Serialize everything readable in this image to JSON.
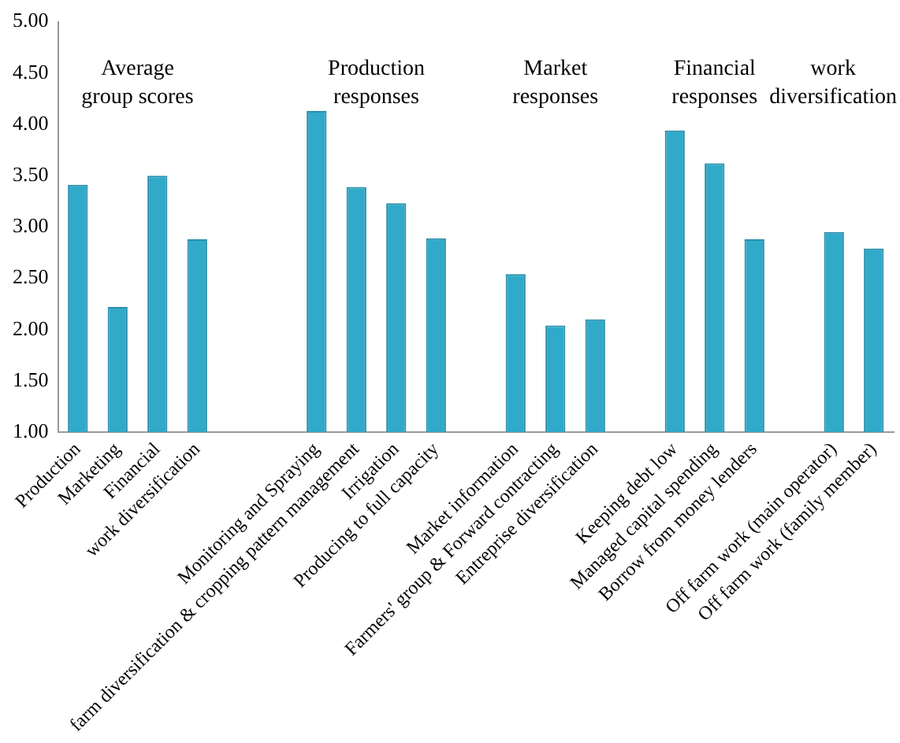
{
  "chart_data": {
    "type": "bar",
    "categories": [
      "Production",
      "Marketing",
      "Financial",
      "work diversification",
      null,
      null,
      "Monitoring and Spraying",
      "farm diversification & cropping pattern management",
      "Irrigation",
      "Producing to full capacity",
      null,
      "Market information",
      "Farmers' group & Forward contracting",
      "Entreprise diversification",
      null,
      "Keeping debt low",
      "Managed capital spending",
      "Borrow from money lenders",
      null,
      "Off farm work (main operator)",
      "Off farm work (family member)"
    ],
    "values": [
      3.41,
      2.22,
      3.5,
      2.88,
      null,
      null,
      4.13,
      3.39,
      3.23,
      2.89,
      null,
      2.54,
      2.04,
      2.1,
      null,
      3.94,
      3.62,
      2.88,
      null,
      2.95,
      2.79
    ],
    "color": "#31a9c9",
    "ylim": [
      1,
      5
    ],
    "yticks": [
      {
        "value": 1,
        "label": "1.00"
      },
      {
        "value": 1.5,
        "label": "1.50"
      },
      {
        "value": 2,
        "label": "2.00"
      },
      {
        "value": 2.5,
        "label": "2.50"
      },
      {
        "value": 3,
        "label": "3.00"
      },
      {
        "value": 3.5,
        "label": "3.50"
      },
      {
        "value": 4,
        "label": "4.00"
      },
      {
        "value": 4.5,
        "label": "4.50"
      },
      {
        "value": 5,
        "label": "5.00"
      }
    ],
    "annotations": [
      "Average group scores",
      "Production responses",
      "Market responses",
      "Financial responses",
      "work diversification"
    ],
    "grid": false,
    "legend": false
  }
}
